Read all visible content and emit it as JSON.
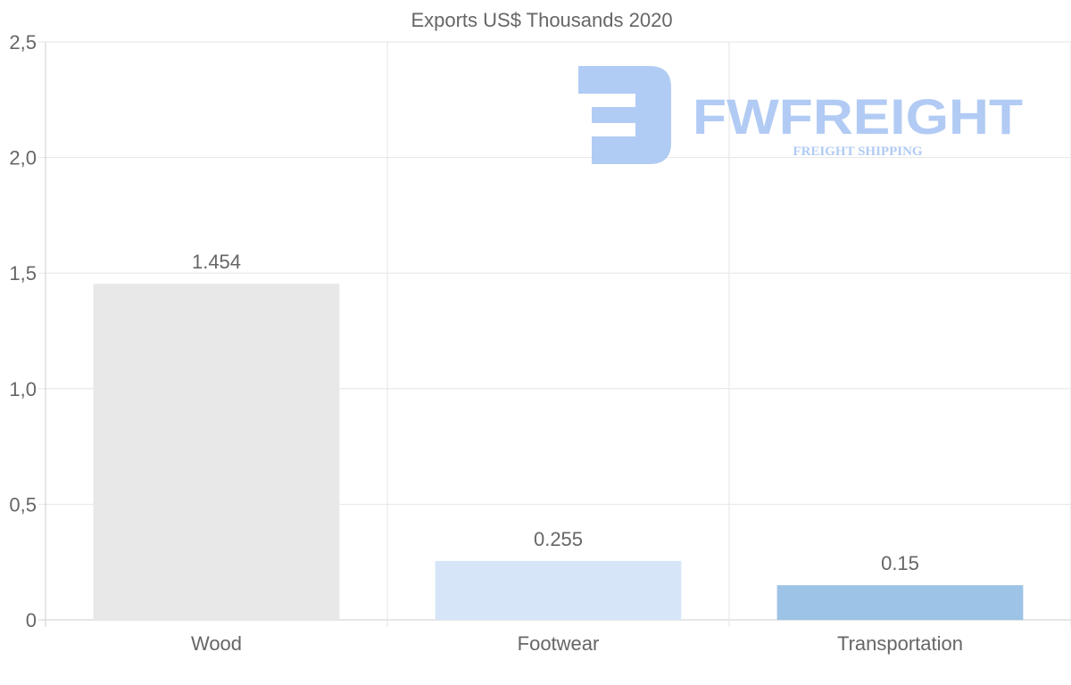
{
  "chart_data": {
    "type": "bar",
    "title": "Exports US$ Thousands 2020",
    "categories": [
      "Wood",
      "Footwear",
      "Transportation"
    ],
    "values": [
      1.454,
      0.255,
      0.15
    ],
    "value_labels": [
      "1.454",
      "0.255",
      "0.15"
    ],
    "colors": [
      "#e8e8e8",
      "#d6e6f8",
      "#9dc3e6"
    ],
    "xlabel": "",
    "ylabel": "",
    "ylim": [
      0,
      2.5
    ],
    "yticks": [
      0,
      0.5,
      1.0,
      1.5,
      2.0,
      2.5
    ],
    "ytick_labels": [
      "0",
      "0,5",
      "1,0",
      "1,5",
      "2,0",
      "2,5"
    ],
    "grid": true,
    "legend": "none"
  },
  "watermark": {
    "brand": "FWFREIGHT",
    "tagline": "FREIGHT SHIPPING",
    "color": "#a9c6f3"
  }
}
